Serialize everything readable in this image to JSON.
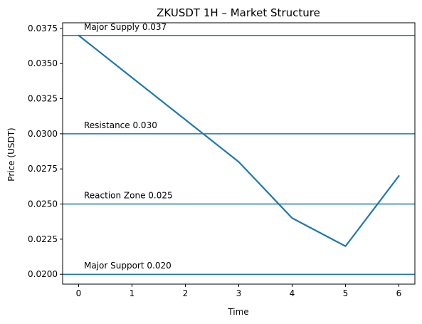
{
  "chart_data": {
    "type": "line",
    "title": "ZKUSDT 1H – Market Structure",
    "xlabel": "Time",
    "ylabel": "Price (USDT)",
    "xlim": [
      -0.3,
      6.3
    ],
    "ylim": [
      0.0193,
      0.0379
    ],
    "xticks": [
      0,
      1,
      2,
      3,
      4,
      5,
      6
    ],
    "xtick_labels": [
      "0",
      "1",
      "2",
      "3",
      "4",
      "5",
      "6"
    ],
    "yticks": [
      0.02,
      0.0225,
      0.025,
      0.0275,
      0.03,
      0.0325,
      0.035,
      0.0375
    ],
    "ytick_labels": [
      "0.0200",
      "0.0225",
      "0.0250",
      "0.0275",
      "0.0300",
      "0.0325",
      "0.0350",
      "0.0375"
    ],
    "series": [
      {
        "x": [
          0,
          1,
          2,
          3,
          4,
          5,
          6
        ],
        "y": [
          0.037,
          0.034,
          0.031,
          0.028,
          0.024,
          0.022,
          0.027
        ],
        "color": "#1f77b4"
      }
    ],
    "levels": [
      {
        "value": 0.037,
        "label": "Major Supply 0.037"
      },
      {
        "value": 0.03,
        "label": "Resistance 0.030"
      },
      {
        "value": 0.025,
        "label": "Reaction Zone 0.025"
      },
      {
        "value": 0.02,
        "label": "Major Support 0.020"
      }
    ],
    "level_color": "#1f77b4",
    "grid": false
  }
}
